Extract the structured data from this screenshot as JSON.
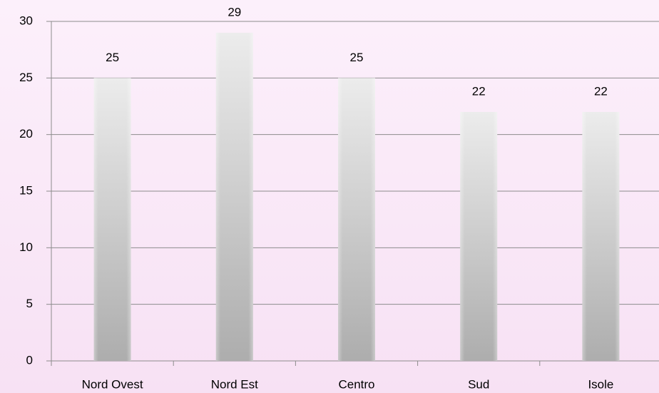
{
  "chart_data": {
    "type": "bar",
    "categories": [
      "Nord Ovest",
      "Nord Est",
      "Centro",
      "Sud",
      "Isole"
    ],
    "values": [
      25,
      29,
      25,
      22,
      22
    ],
    "ylim": [
      0,
      30
    ],
    "yticks": [
      0,
      5,
      10,
      15,
      20,
      25,
      30
    ],
    "grid": true
  }
}
